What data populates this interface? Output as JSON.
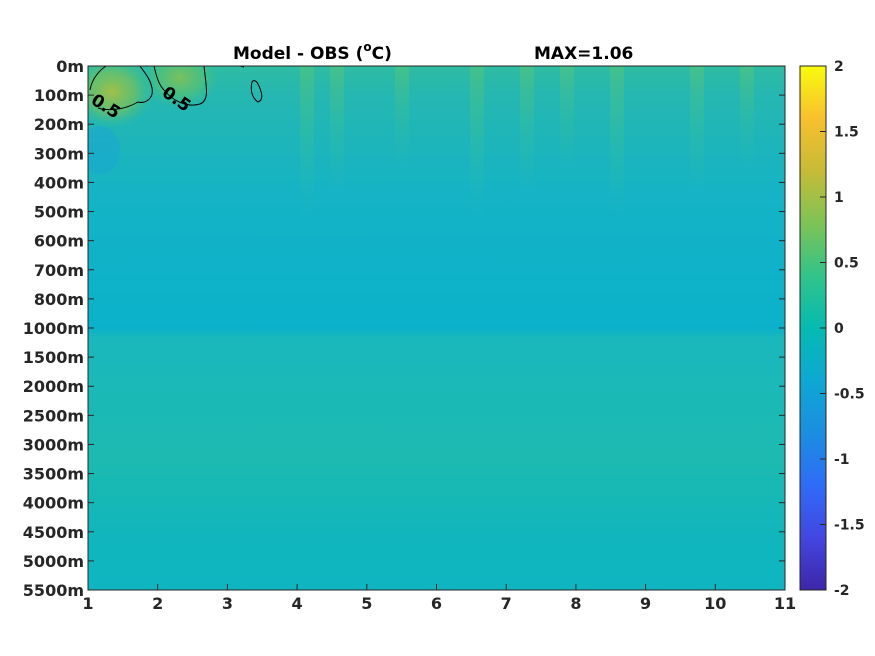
{
  "chart_data": {
    "type": "heatmap",
    "title": "Model - OBS (oC)",
    "title_main": "Model - OBS (",
    "title_sup": "o",
    "title_unit": "C)",
    "max_label": "MAX=1.06",
    "x_ticks": [
      "1",
      "2",
      "3",
      "4",
      "5",
      "6",
      "7",
      "8",
      "9",
      "10",
      "11"
    ],
    "xlim": [
      1,
      11
    ],
    "y_ticks": [
      "0m",
      "100m",
      "200m",
      "300m",
      "400m",
      "500m",
      "600m",
      "700m",
      "800m",
      "1000m",
      "1500m",
      "2000m",
      "2500m",
      "3000m",
      "3500m",
      "4000m",
      "4500m",
      "5000m",
      "5500m"
    ],
    "colorbar": {
      "ticks": [
        "2",
        "1.5",
        "1",
        "0.5",
        "0",
        "-0.5",
        "-1",
        "-1.5",
        "-2"
      ],
      "range": [
        -2,
        2
      ],
      "colormap": "parula"
    },
    "contour": {
      "level": 0.5,
      "labels": [
        "0.5",
        "0.5"
      ]
    },
    "field_summary": {
      "max": 1.06,
      "typical_range": [
        -0.15,
        0.35
      ],
      "warm_patches": [
        {
          "x": 1.3,
          "depth": "100m",
          "value": 1.06
        },
        {
          "x": 2.3,
          "depth": "50m",
          "value": 0.85
        }
      ]
    },
    "grid": false
  }
}
